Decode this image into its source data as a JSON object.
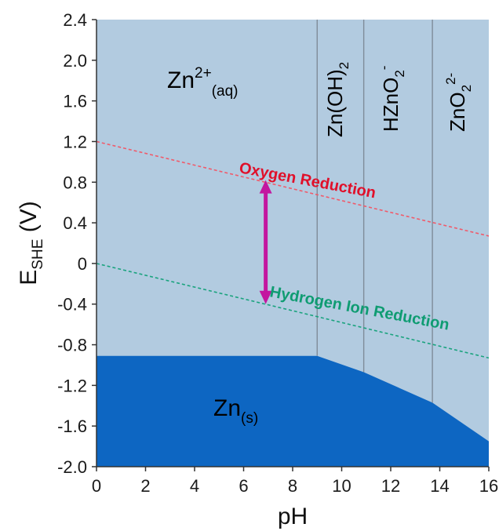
{
  "chart_data": {
    "type": "area",
    "title": "",
    "xlabel": "pH",
    "ylabel": {
      "main": "E",
      "sub": "SHE",
      "units": " (V)"
    },
    "xlim": [
      0,
      16
    ],
    "ylim": [
      -2.0,
      2.4
    ],
    "x_ticks": [
      "0",
      "2",
      "4",
      "6",
      "8",
      "10",
      "12",
      "14",
      "16"
    ],
    "y_ticks": [
      "2.4",
      "2.0",
      "1.6",
      "1.2",
      "0.8",
      "0.4",
      "0",
      "-0.4",
      "-0.8",
      "-1.2",
      "-1.6",
      "-2.0"
    ],
    "grid": false,
    "colors": {
      "aqueous_region": "#b2cbe0",
      "solid_region": "#0d66c2",
      "boundary": "#7f8c99",
      "oxygen_line": "#f05a6a",
      "hydrogen_line": "#1aa37e",
      "arrow": "#c3179f"
    },
    "vertical_boundaries_ph": [
      9.0,
      10.9,
      13.7
    ],
    "solid_boundary": {
      "x": [
        0,
        9.0,
        10.9,
        13.7,
        16
      ],
      "y": [
        -0.91,
        -0.91,
        -1.07,
        -1.37,
        -1.75
      ]
    },
    "series": [
      {
        "name": "Oxygen Reduction",
        "x": [
          0,
          16
        ],
        "y": [
          1.2,
          0.27
        ]
      },
      {
        "name": "Hydrogen Ion Reduction",
        "x": [
          0,
          16
        ],
        "y": [
          0.0,
          -0.93
        ]
      }
    ],
    "arrow": {
      "x": 6.9,
      "y_top": 0.82,
      "y_bottom": -0.4
    },
    "regions": [
      {
        "label": "Zn",
        "sup": "2+",
        "sub": "(aq)"
      },
      {
        "label": "Zn",
        "sub": "(s)"
      },
      {
        "label": "Zn(OH)",
        "sub": "2"
      },
      {
        "label": "HZnO",
        "sub": "2",
        "sup": "-"
      },
      {
        "label": "ZnO",
        "sub": "2",
        "sup": "2-"
      }
    ]
  }
}
